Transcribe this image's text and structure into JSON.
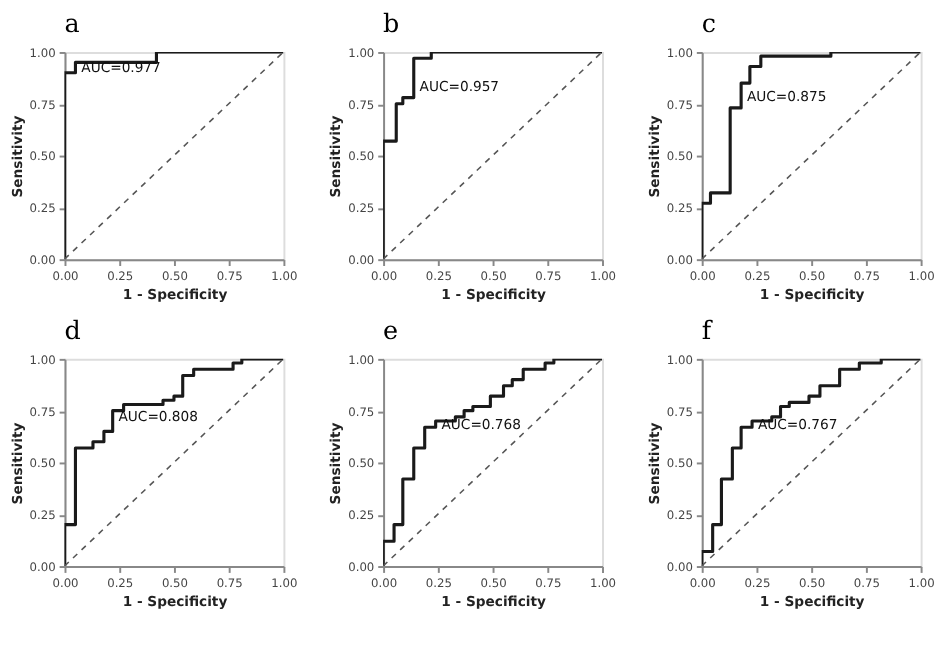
{
  "chart_data": [
    {
      "type": "line",
      "title": "a",
      "xlabel": "1 - Specificity",
      "ylabel": "Sensitivity",
      "xlim": [
        0,
        1
      ],
      "ylim": [
        0,
        1
      ],
      "grid": false,
      "xticks": [
        {
          "value": 0,
          "label": "0.00"
        },
        {
          "value": 0.25,
          "label": "0.25"
        },
        {
          "value": 0.5,
          "label": "0.50"
        },
        {
          "value": 0.75,
          "label": "0.75"
        },
        {
          "value": 1,
          "label": "1.00"
        }
      ],
      "yticks": [
        {
          "value": 0,
          "label": "0.00"
        },
        {
          "value": 0.25,
          "label": "0.25"
        },
        {
          "value": 0.5,
          "label": "0.50"
        },
        {
          "value": 0.75,
          "label": "0.75"
        },
        {
          "value": 1,
          "label": "1.00"
        }
      ],
      "series": [
        {
          "color": "#1a1a1a",
          "line_style": "solid",
          "x": [
            0,
            0,
            0.05,
            0.05,
            0.42,
            0.42,
            1
          ],
          "values": [
            0,
            0.9,
            0.9,
            0.95,
            0.95,
            1,
            1
          ]
        },
        {
          "color": "#555555",
          "line_style": "dashed",
          "x": [
            0,
            1
          ],
          "values": [
            0,
            1
          ]
        }
      ],
      "annotations": [
        {
          "text": "AUC=0.977",
          "x": 0.05,
          "y": 0.92
        }
      ]
    },
    {
      "type": "line",
      "title": "b",
      "xlabel": "1 - Specificity",
      "ylabel": "Sensitivity",
      "xlim": [
        0,
        1
      ],
      "ylim": [
        0,
        1
      ],
      "grid": false,
      "xticks": [
        {
          "value": 0,
          "label": "0.00"
        },
        {
          "value": 0.25,
          "label": "0.25"
        },
        {
          "value": 0.5,
          "label": "0.50"
        },
        {
          "value": 0.75,
          "label": "0.75"
        },
        {
          "value": 1,
          "label": "1.00"
        }
      ],
      "yticks": [
        {
          "value": 0,
          "label": "0.00"
        },
        {
          "value": 0.25,
          "label": "0.25"
        },
        {
          "value": 0.5,
          "label": "0.50"
        },
        {
          "value": 0.75,
          "label": "0.75"
        },
        {
          "value": 1,
          "label": "1.00"
        }
      ],
      "series": [
        {
          "color": "#1a1a1a",
          "line_style": "solid",
          "x": [
            0,
            0,
            0.06,
            0.06,
            0.09,
            0.09,
            0.14,
            0.14,
            0.22,
            0.22,
            1
          ],
          "values": [
            0,
            0.57,
            0.57,
            0.75,
            0.75,
            0.78,
            0.78,
            0.97,
            0.97,
            1,
            1
          ]
        },
        {
          "color": "#555555",
          "line_style": "dashed",
          "x": [
            0,
            1
          ],
          "values": [
            0,
            1
          ]
        }
      ],
      "annotations": [
        {
          "text": "AUC=0.957",
          "x": 0.14,
          "y": 0.83
        }
      ]
    },
    {
      "type": "line",
      "title": "c",
      "xlabel": "1 - Specificity",
      "ylabel": "Sensitivity",
      "xlim": [
        0,
        1
      ],
      "ylim": [
        0,
        1
      ],
      "grid": false,
      "xticks": [
        {
          "value": 0,
          "label": "0.00"
        },
        {
          "value": 0.25,
          "label": "0.25"
        },
        {
          "value": 0.5,
          "label": "0.50"
        },
        {
          "value": 0.75,
          "label": "0.75"
        },
        {
          "value": 1,
          "label": "1.00"
        }
      ],
      "yticks": [
        {
          "value": 0,
          "label": "0.00"
        },
        {
          "value": 0.25,
          "label": "0.25"
        },
        {
          "value": 0.5,
          "label": "0.50"
        },
        {
          "value": 0.75,
          "label": "0.75"
        },
        {
          "value": 1,
          "label": "1.00"
        }
      ],
      "series": [
        {
          "color": "#1a1a1a",
          "line_style": "solid",
          "x": [
            0,
            0,
            0.04,
            0.04,
            0.13,
            0.13,
            0.18,
            0.18,
            0.22,
            0.22,
            0.27,
            0.27,
            0.59,
            0.59,
            1
          ],
          "values": [
            0,
            0.27,
            0.27,
            0.32,
            0.32,
            0.73,
            0.73,
            0.85,
            0.85,
            0.93,
            0.93,
            0.98,
            0.98,
            1,
            1
          ]
        },
        {
          "color": "#555555",
          "line_style": "dashed",
          "x": [
            0,
            1
          ],
          "values": [
            0,
            1
          ]
        }
      ],
      "annotations": [
        {
          "text": "AUC=0.875",
          "x": 0.18,
          "y": 0.78
        }
      ]
    },
    {
      "type": "line",
      "title": "d",
      "xlabel": "1 - Specificity",
      "ylabel": "Sensitivity",
      "xlim": [
        0,
        1
      ],
      "ylim": [
        0,
        1
      ],
      "grid": false,
      "xticks": [
        {
          "value": 0,
          "label": "0.00"
        },
        {
          "value": 0.25,
          "label": "0.25"
        },
        {
          "value": 0.5,
          "label": "0.50"
        },
        {
          "value": 0.75,
          "label": "0.75"
        },
        {
          "value": 1,
          "label": "1.00"
        }
      ],
      "yticks": [
        {
          "value": 0,
          "label": "0.00"
        },
        {
          "value": 0.25,
          "label": "0.25"
        },
        {
          "value": 0.5,
          "label": "0.50"
        },
        {
          "value": 0.75,
          "label": "0.75"
        },
        {
          "value": 1,
          "label": "1.00"
        }
      ],
      "series": [
        {
          "color": "#1a1a1a",
          "line_style": "solid",
          "x": [
            0,
            0,
            0.05,
            0.05,
            0.13,
            0.13,
            0.18,
            0.18,
            0.22,
            0.22,
            0.27,
            0.27,
            0.45,
            0.45,
            0.5,
            0.5,
            0.54,
            0.54,
            0.59,
            0.59,
            0.77,
            0.77,
            0.81,
            0.81,
            1
          ],
          "values": [
            0,
            0.2,
            0.2,
            0.57,
            0.57,
            0.6,
            0.6,
            0.65,
            0.65,
            0.75,
            0.75,
            0.78,
            0.78,
            0.8,
            0.8,
            0.82,
            0.82,
            0.92,
            0.92,
            0.95,
            0.95,
            0.98,
            0.98,
            1,
            1
          ]
        },
        {
          "color": "#555555",
          "line_style": "dashed",
          "x": [
            0,
            1
          ],
          "values": [
            0,
            1
          ]
        }
      ],
      "annotations": [
        {
          "text": "AUC=0.808",
          "x": 0.22,
          "y": 0.72
        }
      ]
    },
    {
      "type": "line",
      "title": "e",
      "xlabel": "1 - Specificity",
      "ylabel": "Sensitivity",
      "xlim": [
        0,
        1
      ],
      "ylim": [
        0,
        1
      ],
      "grid": false,
      "xticks": [
        {
          "value": 0,
          "label": "0.00"
        },
        {
          "value": 0.25,
          "label": "0.25"
        },
        {
          "value": 0.5,
          "label": "0.50"
        },
        {
          "value": 0.75,
          "label": "0.75"
        },
        {
          "value": 1,
          "label": "1.00"
        }
      ],
      "yticks": [
        {
          "value": 0,
          "label": "0.00"
        },
        {
          "value": 0.25,
          "label": "0.25"
        },
        {
          "value": 0.5,
          "label": "0.50"
        },
        {
          "value": 0.75,
          "label": "0.75"
        },
        {
          "value": 1,
          "label": "1.00"
        }
      ],
      "series": [
        {
          "color": "#1a1a1a",
          "line_style": "solid",
          "x": [
            0,
            0,
            0.05,
            0.05,
            0.09,
            0.09,
            0.14,
            0.14,
            0.19,
            0.19,
            0.24,
            0.24,
            0.33,
            0.33,
            0.37,
            0.37,
            0.41,
            0.41,
            0.49,
            0.49,
            0.55,
            0.55,
            0.59,
            0.59,
            0.64,
            0.64,
            0.74,
            0.74,
            0.78,
            0.78,
            1
          ],
          "values": [
            0,
            0.12,
            0.12,
            0.2,
            0.2,
            0.42,
            0.42,
            0.57,
            0.57,
            0.67,
            0.67,
            0.7,
            0.7,
            0.72,
            0.72,
            0.75,
            0.75,
            0.77,
            0.77,
            0.82,
            0.82,
            0.87,
            0.87,
            0.9,
            0.9,
            0.95,
            0.95,
            0.98,
            0.98,
            1,
            1
          ]
        },
        {
          "color": "#555555",
          "line_style": "dashed",
          "x": [
            0,
            1
          ],
          "values": [
            0,
            1
          ]
        }
      ],
      "annotations": [
        {
          "text": "AUC=0.768",
          "x": 0.24,
          "y": 0.68
        }
      ]
    },
    {
      "type": "line",
      "title": "f",
      "xlabel": "1 - Specificity",
      "ylabel": "Sensitivity",
      "xlim": [
        0,
        1
      ],
      "ylim": [
        0,
        1
      ],
      "grid": false,
      "xticks": [
        {
          "value": 0,
          "label": "0.00"
        },
        {
          "value": 0.25,
          "label": "0.25"
        },
        {
          "value": 0.5,
          "label": "0.50"
        },
        {
          "value": 0.75,
          "label": "0.75"
        },
        {
          "value": 1,
          "label": "1.00"
        }
      ],
      "yticks": [
        {
          "value": 0,
          "label": "0.00"
        },
        {
          "value": 0.25,
          "label": "0.25"
        },
        {
          "value": 0.5,
          "label": "0.50"
        },
        {
          "value": 0.75,
          "label": "0.75"
        },
        {
          "value": 1,
          "label": "1.00"
        }
      ],
      "series": [
        {
          "color": "#1a1a1a",
          "line_style": "solid",
          "x": [
            0,
            0,
            0.05,
            0.05,
            0.09,
            0.09,
            0.14,
            0.14,
            0.18,
            0.18,
            0.23,
            0.23,
            0.32,
            0.32,
            0.36,
            0.36,
            0.4,
            0.4,
            0.49,
            0.49,
            0.54,
            0.54,
            0.63,
            0.63,
            0.72,
            0.72,
            0.82,
            0.82,
            1
          ],
          "values": [
            0,
            0.07,
            0.07,
            0.2,
            0.2,
            0.42,
            0.42,
            0.57,
            0.57,
            0.67,
            0.67,
            0.7,
            0.7,
            0.72,
            0.72,
            0.77,
            0.77,
            0.79,
            0.79,
            0.82,
            0.82,
            0.87,
            0.87,
            0.95,
            0.95,
            0.98,
            0.98,
            1,
            1
          ]
        },
        {
          "color": "#555555",
          "line_style": "dashed",
          "x": [
            0,
            1
          ],
          "values": [
            0,
            1
          ]
        }
      ],
      "annotations": [
        {
          "text": "AUC=0.767",
          "x": 0.23,
          "y": 0.68
        }
      ]
    }
  ]
}
